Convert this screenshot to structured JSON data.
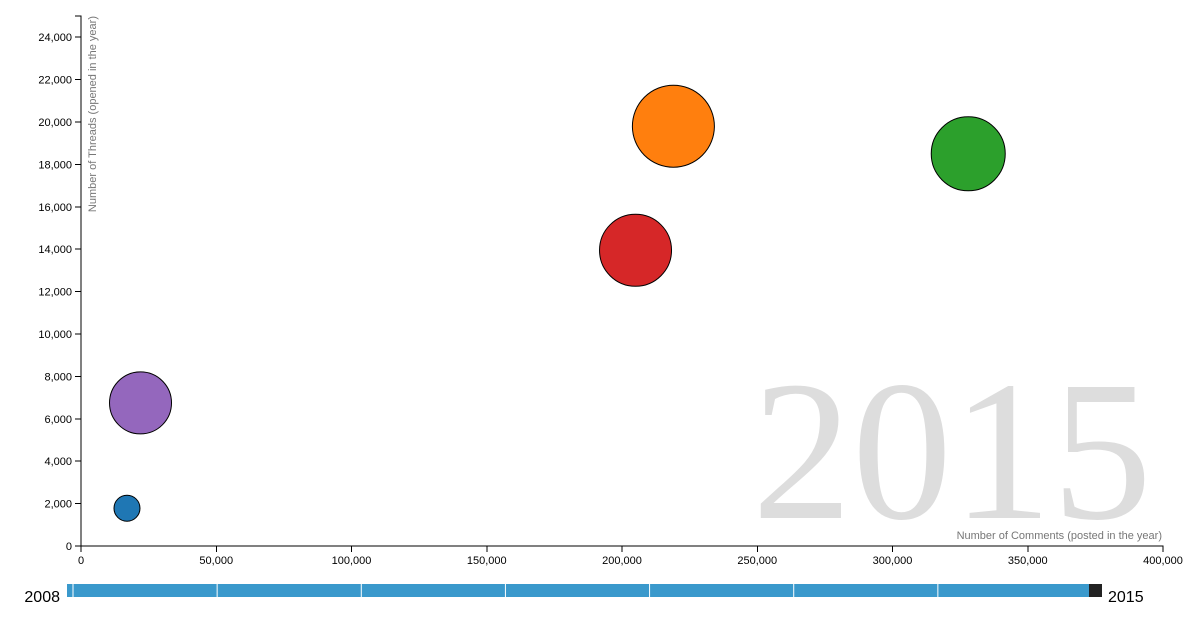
{
  "chart_data": {
    "type": "scatter",
    "title": "",
    "xlabel": "Number of Comments (posted in the year)",
    "ylabel": "Number of Threads (opened in the year)",
    "xlim": [
      0,
      400000
    ],
    "ylim": [
      0,
      25000
    ],
    "x_ticks": [
      0,
      50000,
      100000,
      150000,
      200000,
      250000,
      300000,
      350000,
      400000
    ],
    "x_tick_labels": [
      "0",
      "50,000",
      "100,000",
      "150,000",
      "200,000",
      "250,000",
      "300,000",
      "350,000",
      "400,000"
    ],
    "y_ticks": [
      0,
      2000,
      4000,
      6000,
      8000,
      10000,
      12000,
      14000,
      16000,
      18000,
      20000,
      22000,
      24000
    ],
    "y_tick_labels": [
      "0",
      "2,000",
      "4,000",
      "6,000",
      "8,000",
      "10,000",
      "12,000",
      "14,000",
      "16,000",
      "18,000",
      "20,000",
      "22,000",
      "24,000"
    ],
    "grid": false,
    "current_year_label": "2015",
    "slider": {
      "start_label": "2008",
      "end_label": "2015",
      "min_year": 2008,
      "max_year": 2015,
      "value": 2015
    },
    "points": [
      {
        "x": 219000,
        "y": 19800,
        "size": 41,
        "color": "#ff7f0e"
      },
      {
        "x": 328000,
        "y": 18500,
        "size": 37,
        "color": "#2ca02c"
      },
      {
        "x": 205000,
        "y": 13950,
        "size": 36,
        "color": "#d62728"
      },
      {
        "x": 22000,
        "y": 6750,
        "size": 31,
        "color": "#9467bd"
      },
      {
        "x": 17000,
        "y": 1780,
        "size": 13,
        "color": "#1f77b4"
      }
    ]
  }
}
